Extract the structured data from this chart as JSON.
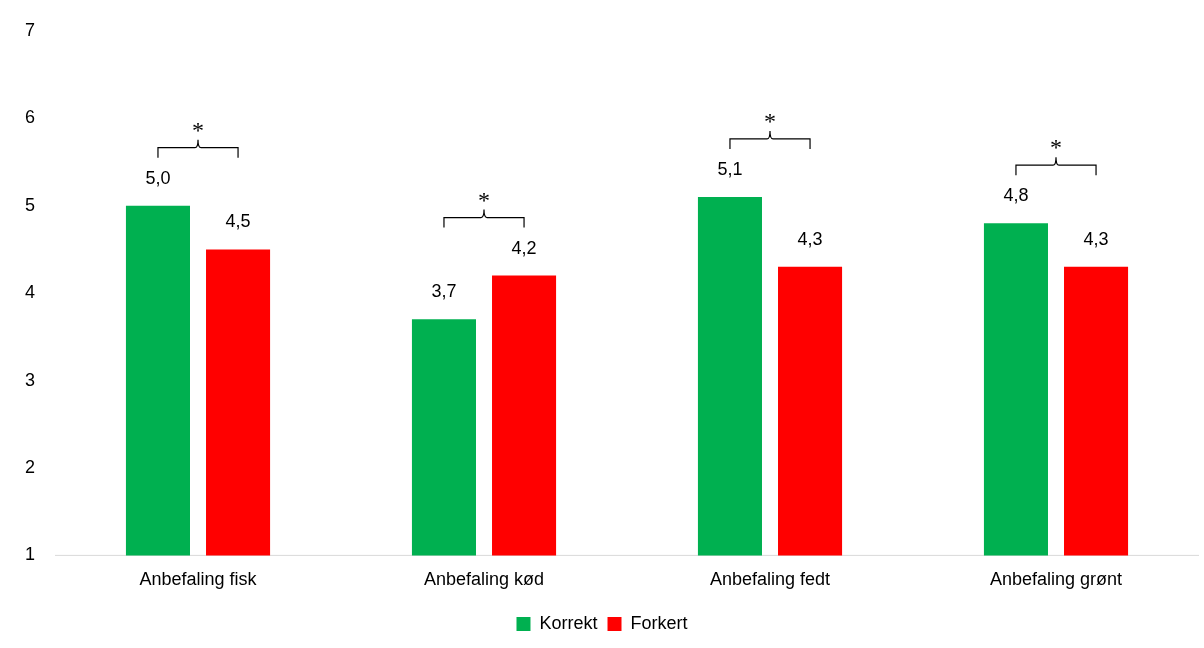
{
  "chart_data": {
    "type": "bar",
    "categories": [
      "Anbefaling fisk",
      "Anbefaling kød",
      "Anbefaling fedt",
      "Anbefaling grønt"
    ],
    "series": [
      {
        "name": "Korrekt",
        "color": "#00b050",
        "values": [
          5.0,
          3.7,
          5.1,
          4.8
        ],
        "value_labels": [
          "5,0",
          "3,7",
          "5,1",
          "4,8"
        ]
      },
      {
        "name": "Forkert",
        "color": "#ff0000",
        "values": [
          4.5,
          4.2,
          4.3,
          4.3
        ],
        "value_labels": [
          "4,5",
          "4,2",
          "4,3",
          "4,3"
        ]
      }
    ],
    "ylim": [
      1,
      7
    ],
    "yticks": [
      1,
      2,
      3,
      4,
      5,
      6,
      7
    ],
    "grid": false,
    "legend": "bottom",
    "annotations": [
      "*",
      "*",
      "*",
      "*"
    ]
  }
}
